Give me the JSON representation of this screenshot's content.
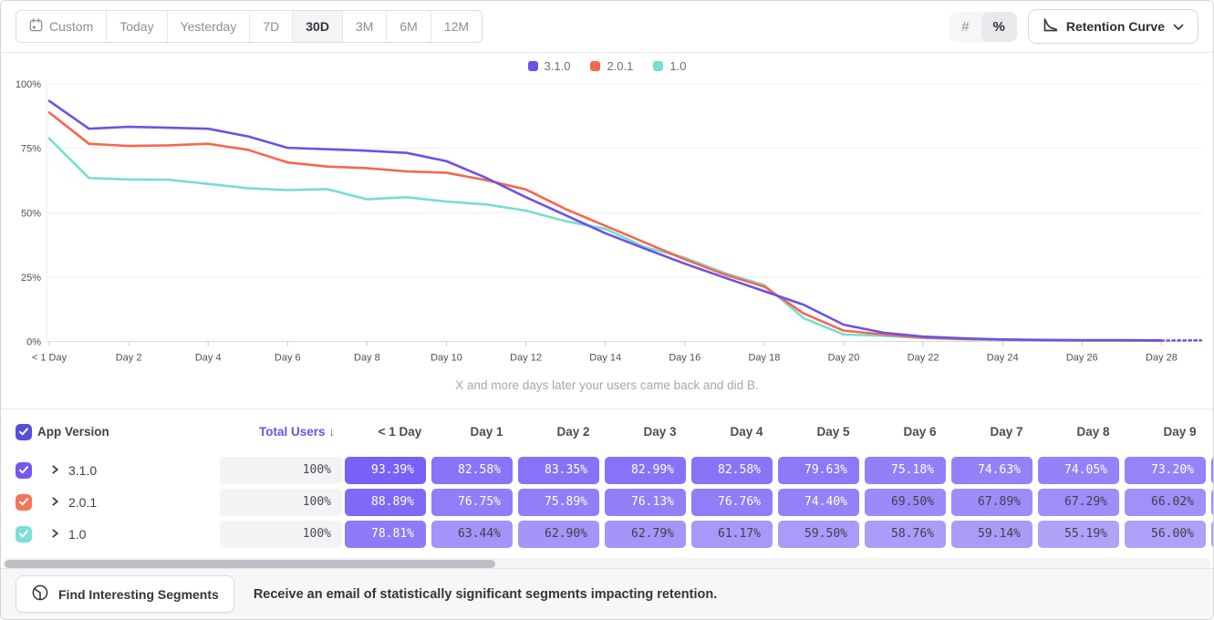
{
  "toolbar": {
    "date_ranges": [
      {
        "label": "Custom",
        "icon": "calendar",
        "active": false
      },
      {
        "label": "Today",
        "active": false
      },
      {
        "label": "Yesterday",
        "active": false
      },
      {
        "label": "7D",
        "active": false
      },
      {
        "label": "30D",
        "active": true
      },
      {
        "label": "3M",
        "active": false
      },
      {
        "label": "6M",
        "active": false
      },
      {
        "label": "12M",
        "active": false
      }
    ],
    "format_toggle": [
      {
        "label": "#",
        "active": false
      },
      {
        "label": "%",
        "active": true
      }
    ],
    "chart_type": {
      "label": "Retention Curve"
    }
  },
  "legend": [
    {
      "label": "3.1.0",
      "color": "#6C52E8"
    },
    {
      "label": "2.0.1",
      "color": "#F5674E"
    },
    {
      "label": "1.0",
      "color": "#77DDD1"
    }
  ],
  "chart_data": {
    "type": "line",
    "xlabel": "X and more days later your users came back and did B.",
    "ylim": [
      0,
      100
    ],
    "y_ticks": [
      0,
      25,
      50,
      75,
      100
    ],
    "y_tick_labels": [
      "0%",
      "25%",
      "50%",
      "75%",
      "100%"
    ],
    "x_tick_days": [
      0,
      2,
      4,
      6,
      8,
      10,
      12,
      14,
      16,
      18,
      20,
      22,
      24,
      26,
      28
    ],
    "x_tick_labels": [
      "< 1 Day",
      "Day 2",
      "Day 4",
      "Day 6",
      "Day 8",
      "Day 10",
      "Day 12",
      "Day 14",
      "Day 16",
      "Day 18",
      "Day 20",
      "Day 22",
      "Day 24",
      "Day 26",
      "Day 28"
    ],
    "grid": true,
    "legend_position": "top",
    "dashed_tail_from_day": 28,
    "series": [
      {
        "name": "3.1.0",
        "color": "#6C52E8",
        "values": [
          93.39,
          82.58,
          83.35,
          82.99,
          82.58,
          79.63,
          75.18,
          74.63,
          74.05,
          73.2,
          70.0,
          63.5,
          56.0,
          49.0,
          42.0,
          36.0,
          30.2,
          24.8,
          19.5,
          14.2,
          6.5,
          3.4,
          1.9,
          1.2,
          0.8,
          0.6,
          0.5,
          0.5,
          0.4,
          0.5
        ]
      },
      {
        "name": "2.0.1",
        "color": "#F5674E",
        "values": [
          88.89,
          76.75,
          75.89,
          76.13,
          76.76,
          74.4,
          69.5,
          67.89,
          67.29,
          66.02,
          65.5,
          62.6,
          59.0,
          51.4,
          44.9,
          38.4,
          31.9,
          26.0,
          21.3,
          10.8,
          4.2,
          2.7,
          1.5,
          1.0,
          0.7,
          0.5,
          0.4,
          0.4,
          0.3,
          0.4
        ]
      },
      {
        "name": "1.0",
        "color": "#77DDD1",
        "values": [
          78.81,
          63.44,
          62.9,
          62.79,
          61.17,
          59.5,
          58.76,
          59.14,
          55.19,
          56.0,
          54.3,
          53.2,
          50.8,
          46.7,
          43.7,
          36.6,
          32.5,
          26.6,
          21.9,
          9.0,
          2.7,
          2.2,
          1.3,
          0.8,
          0.6,
          0.4,
          0.3,
          0.3,
          0.3,
          0.3
        ]
      }
    ]
  },
  "table": {
    "header": {
      "select_all_checked": true,
      "select_all_color": "#584CD9",
      "app_version": "App Version",
      "total_users": "Total Users",
      "sort_arrow": "↓",
      "days": [
        "< 1 Day",
        "Day 1",
        "Day 2",
        "Day 3",
        "Day 4",
        "Day 5",
        "Day 6",
        "Day 7",
        "Day 8",
        "Day 9"
      ]
    },
    "cell_base_rgb": [
      112,
      86,
      245
    ],
    "rows": [
      {
        "version": "3.1.0",
        "color": "#7458EE",
        "checked": true,
        "total": "100%",
        "values": [
          93.39,
          82.58,
          83.35,
          82.99,
          82.58,
          79.63,
          75.18,
          74.63,
          74.05,
          73.2
        ]
      },
      {
        "version": "2.0.1",
        "color": "#F4755C",
        "checked": true,
        "total": "100%",
        "values": [
          88.89,
          76.75,
          75.89,
          76.13,
          76.76,
          74.4,
          69.5,
          67.89,
          67.29,
          66.02
        ]
      },
      {
        "version": "1.0",
        "color": "#7FDFD4",
        "checked": true,
        "total": "100%",
        "values": [
          78.81,
          63.44,
          62.9,
          62.79,
          61.17,
          59.5,
          58.76,
          59.14,
          55.19,
          56.0
        ]
      }
    ]
  },
  "footer": {
    "button_label": "Find Interesting Segments",
    "text": "Receive an email of statistically significant segments impacting retention."
  }
}
